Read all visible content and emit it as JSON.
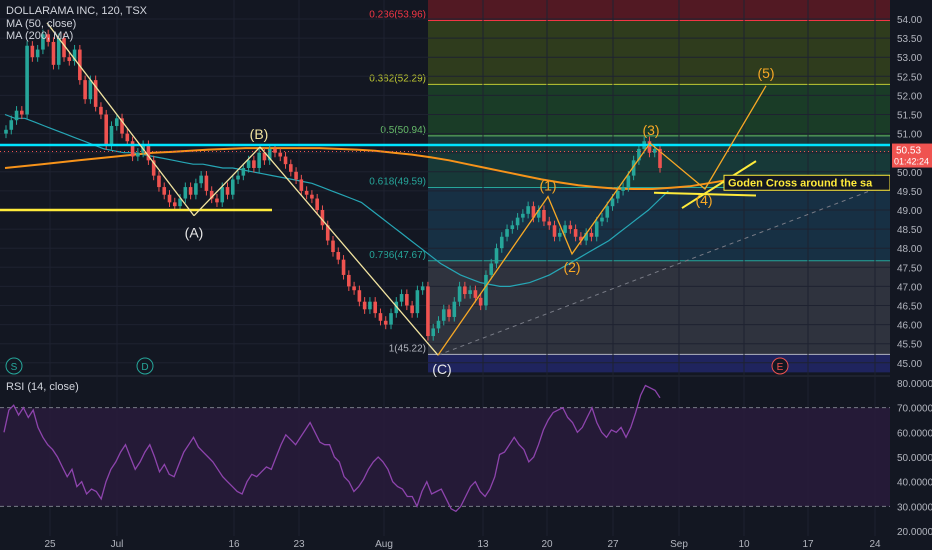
{
  "header": {
    "symbol_line": "DOLLARAMA INC, 120, TSX",
    "ma50_label": "MA (50, close)",
    "ma200_label": "MA (200, MA)"
  },
  "rsi": {
    "label": "RSI (14, close)",
    "ticks": [
      "80.0000",
      "70.0000",
      "60.0000",
      "50.0000",
      "40.0000",
      "30.0000",
      "20.0000"
    ],
    "tick_values": [
      80,
      70,
      60,
      50,
      40,
      30,
      20
    ],
    "bands": [
      70,
      30
    ],
    "series": [
      60,
      69,
      71,
      67,
      70,
      66,
      69,
      62,
      58,
      55,
      53,
      50,
      46,
      42,
      45,
      38,
      40,
      35,
      37,
      36,
      33,
      40,
      45,
      48,
      52,
      55,
      50,
      45,
      48,
      52,
      55,
      50,
      44,
      47,
      43,
      42,
      47,
      52,
      55,
      58,
      54,
      52,
      50,
      48,
      45,
      42,
      40,
      38,
      36,
      35,
      40,
      43,
      42,
      44,
      46,
      45,
      50,
      55,
      59,
      57,
      55,
      58,
      61,
      64,
      60,
      56,
      55,
      55,
      50,
      48,
      42,
      40,
      36,
      38,
      41,
      45,
      48,
      50,
      48,
      45,
      40,
      38,
      37,
      34,
      34,
      30,
      36,
      40,
      35,
      36,
      37,
      33,
      29,
      28,
      30,
      34,
      38,
      40,
      36,
      34,
      37,
      42,
      51,
      52,
      55,
      58,
      55,
      53,
      48,
      50,
      55,
      61,
      65,
      68,
      69,
      70,
      66,
      64,
      60,
      62,
      66,
      70,
      64,
      60,
      58,
      61,
      60,
      62,
      58,
      62,
      68,
      75,
      79,
      78,
      77,
      74
    ]
  },
  "chart_data": {
    "type": "candlestick",
    "title": "DOLLARAMA INC, 120, TSX",
    "xlabel": "",
    "ylabel": "",
    "ylim": [
      44.75,
      54.25
    ],
    "grid": true,
    "x_ticks": [
      "25",
      "Jul",
      "16",
      "23",
      "Aug",
      "13",
      "20",
      "27",
      "Sep",
      "10",
      "17",
      "24"
    ],
    "y_ticks": [
      "54.00",
      "53.50",
      "53.00",
      "52.50",
      "52.00",
      "51.50",
      "51.00",
      "50.50",
      "50.00",
      "49.50",
      "49.00",
      "48.50",
      "48.00",
      "47.50",
      "47.00",
      "46.50",
      "46.00",
      "45.50",
      "45.00"
    ],
    "y_tick_values": [
      54,
      53.5,
      53,
      52.5,
      52,
      51.5,
      51,
      50.5,
      50,
      49.5,
      49,
      48.5,
      48,
      47.5,
      47,
      46.5,
      46,
      45.5,
      45
    ],
    "last_price": "50.53",
    "countdown": "01:42:24",
    "closes": [
      51.1,
      51.35,
      51.6,
      51.5,
      53.3,
      53.0,
      53.2,
      53.6,
      53.4,
      52.8,
      53.5,
      53.0,
      52.9,
      53.2,
      52.4,
      51.9,
      52.4,
      51.7,
      51.5,
      50.7,
      51.2,
      51.4,
      51.0,
      50.8,
      50.4,
      50.5,
      50.7,
      50.3,
      49.9,
      49.6,
      49.4,
      49.2,
      49.1,
      49.3,
      49.6,
      49.4,
      49.7,
      49.9,
      49.5,
      49.3,
      49.2,
      49.6,
      49.4,
      49.8,
      49.9,
      50.1,
      50.3,
      50.1,
      50.5,
      50.3,
      50.6,
      50.5,
      50.4,
      50.2,
      50.0,
      49.8,
      49.5,
      49.4,
      49.3,
      49.0,
      48.6,
      48.2,
      47.9,
      47.7,
      47.3,
      47.0,
      46.9,
      46.6,
      46.4,
      46.6,
      46.3,
      46.1,
      46.0,
      46.3,
      46.6,
      46.8,
      46.5,
      46.3,
      46.9,
      47.0,
      45.7,
      45.9,
      46.1,
      46.4,
      46.2,
      46.6,
      47.0,
      46.8,
      46.9,
      46.7,
      46.5,
      47.3,
      47.6,
      48.0,
      48.3,
      48.5,
      48.6,
      48.8,
      48.9,
      49.1,
      48.8,
      49.0,
      48.7,
      48.6,
      48.3,
      48.4,
      48.6,
      48.5,
      48.3,
      48.2,
      48.4,
      48.3,
      48.7,
      48.8,
      49.1,
      49.3,
      49.5,
      49.6,
      49.9,
      50.3,
      50.6,
      50.8,
      50.5,
      50.6,
      50.1
    ],
    "ma50": [
      51.5,
      51.4,
      51.4,
      51.3,
      51.2,
      51.1,
      51.0,
      50.9,
      50.8,
      50.7,
      50.6,
      50.55,
      50.5,
      50.5,
      50.45,
      50.4,
      50.35,
      50.3,
      50.25,
      50.2,
      50.2,
      50.15,
      50.1,
      50.1,
      50.05,
      50.0,
      49.95,
      49.9,
      49.85,
      49.8,
      49.75,
      49.7,
      49.6,
      49.5,
      49.4,
      49.3,
      49.2,
      49.0,
      48.8,
      48.6,
      48.4,
      48.2,
      48.0,
      47.8,
      47.6,
      47.45,
      47.3,
      47.2,
      47.1,
      47.05,
      47.0,
      47.0,
      47.05,
      47.1,
      47.2,
      47.3,
      47.45,
      47.6,
      47.75,
      47.9,
      48.05,
      48.2,
      48.4,
      48.6,
      48.8,
      49.0,
      49.25,
      49.5
    ],
    "ma200": [
      50.1,
      50.15,
      50.2,
      50.25,
      50.3,
      50.35,
      50.4,
      50.45,
      50.5,
      50.52,
      50.55,
      50.58,
      50.6,
      50.62,
      50.62,
      50.62,
      50.62,
      50.62,
      50.6,
      50.58,
      50.55,
      50.5,
      50.45,
      50.38,
      50.3,
      50.2,
      50.1,
      50.0,
      49.9,
      49.8,
      49.72,
      49.65,
      49.6,
      49.56,
      49.55,
      49.55,
      49.58,
      49.62,
      49.7,
      49.78
    ],
    "fib_levels": [
      {
        "label": "0.236(53.96)",
        "value": 53.96,
        "color": "#f23645"
      },
      {
        "label": "0.382(52.29)",
        "value": 52.29,
        "color": "#c0ca33"
      },
      {
        "label": "0.5(50.94)",
        "value": 50.94,
        "color": "#66bb6a"
      },
      {
        "label": "0.618(49.59)",
        "value": 49.59,
        "color": "#26a69a"
      },
      {
        "label": "0.786(47.67)",
        "value": 47.67,
        "color": "#26a69a"
      },
      {
        "label": "1(45.22)",
        "value": 45.22,
        "color": "#b2b5be"
      }
    ],
    "annotations": {
      "wave_A": "(A)",
      "wave_B": "(B)",
      "wave_C": "(C)",
      "wave_1": "(1)",
      "wave_2": "(2)",
      "wave_3": "(3)",
      "wave_4": "(4)",
      "wave_5": "(5)",
      "golden_cross": "Goden Cross around the sa"
    },
    "markers": [
      "S",
      "D",
      "E"
    ],
    "colors": {
      "up": "#26a69a",
      "down": "#ef5350",
      "ma50": "#26a6b5",
      "ma200": "#f7931a",
      "abc": "#f2e4a0",
      "wave": "#f7a825",
      "yellow": "#ffeb3b",
      "cyan": "#00e5ff",
      "rsi": "#8e44ad"
    }
  }
}
